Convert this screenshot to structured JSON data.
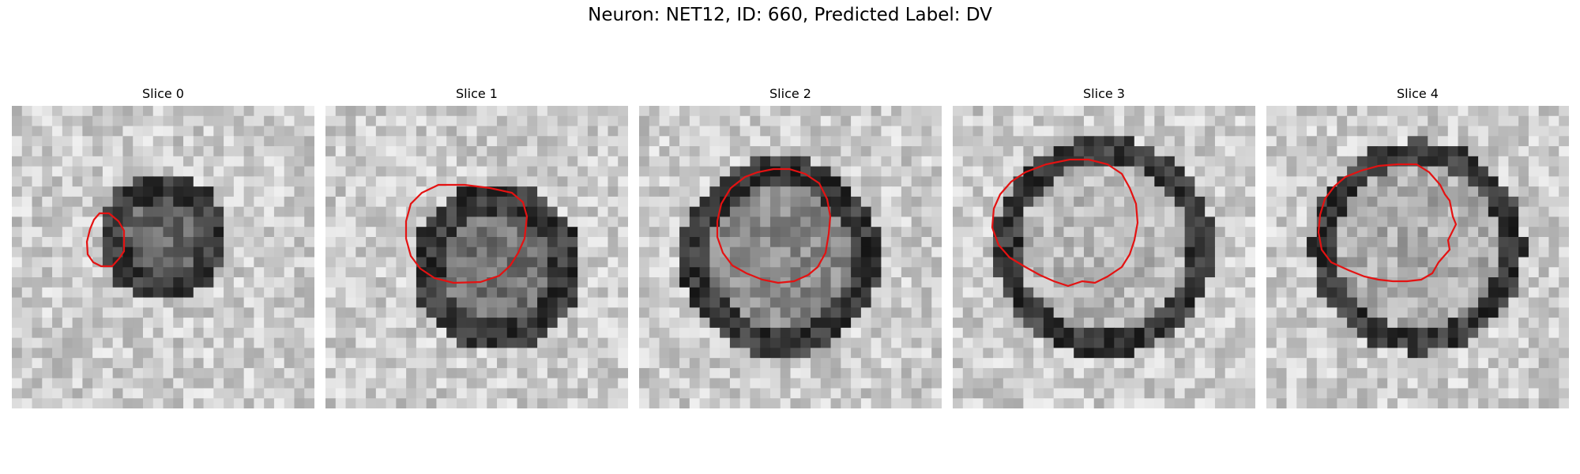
{
  "figure": {
    "title": "Neuron: NET12, ID: 660, Predicted Label: DV",
    "contour_color": "#e41212"
  },
  "panels": [
    {
      "title": "Slice 0",
      "pattern": "ring"
    },
    {
      "title": "Slice 1",
      "pattern": "ring"
    },
    {
      "title": "Slice 2",
      "pattern": "ring"
    },
    {
      "title": "Slice 3",
      "pattern": "ring"
    },
    {
      "title": "Slice 4",
      "pattern": "ring"
    }
  ]
}
